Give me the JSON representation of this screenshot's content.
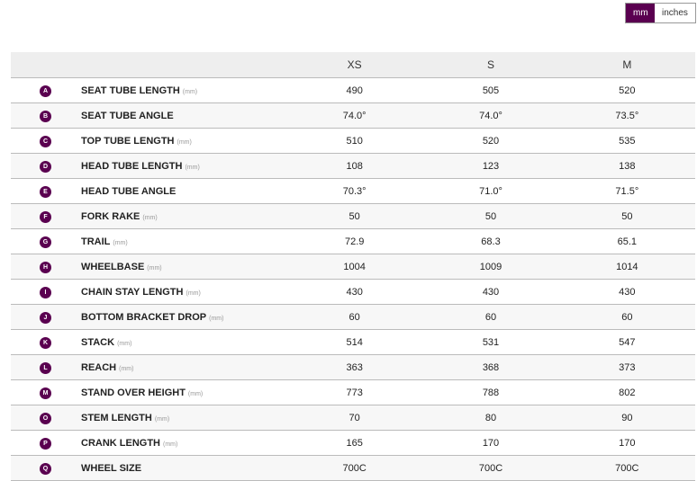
{
  "units": {
    "mm": "mm",
    "inches": "inches",
    "active": "mm"
  },
  "accent": "#5a0050",
  "sizes": [
    "XS",
    "S",
    "M"
  ],
  "rows": [
    {
      "key": "A",
      "label": "SEAT TUBE LENGTH",
      "unit": "(mm)",
      "values": [
        "490",
        "505",
        "520"
      ]
    },
    {
      "key": "B",
      "label": "SEAT TUBE ANGLE",
      "unit": "",
      "values": [
        "74.0°",
        "74.0°",
        "73.5°"
      ]
    },
    {
      "key": "C",
      "label": "TOP TUBE LENGTH",
      "unit": "(mm)",
      "values": [
        "510",
        "520",
        "535"
      ]
    },
    {
      "key": "D",
      "label": "HEAD TUBE LENGTH",
      "unit": "(mm)",
      "values": [
        "108",
        "123",
        "138"
      ]
    },
    {
      "key": "E",
      "label": "HEAD TUBE ANGLE",
      "unit": "",
      "values": [
        "70.3°",
        "71.0°",
        "71.5°"
      ]
    },
    {
      "key": "F",
      "label": "FORK RAKE",
      "unit": "(mm)",
      "values": [
        "50",
        "50",
        "50"
      ]
    },
    {
      "key": "G",
      "label": "TRAIL",
      "unit": "(mm)",
      "values": [
        "72.9",
        "68.3",
        "65.1"
      ]
    },
    {
      "key": "H",
      "label": "WHEELBASE",
      "unit": "(mm)",
      "values": [
        "1004",
        "1009",
        "1014"
      ]
    },
    {
      "key": "I",
      "label": "CHAIN STAY LENGTH",
      "unit": "(mm)",
      "values": [
        "430",
        "430",
        "430"
      ]
    },
    {
      "key": "J",
      "label": "BOTTOM BRACKET DROP",
      "unit": "(mm)",
      "values": [
        "60",
        "60",
        "60"
      ]
    },
    {
      "key": "K",
      "label": "STACK",
      "unit": "(mm)",
      "values": [
        "514",
        "531",
        "547"
      ]
    },
    {
      "key": "L",
      "label": "REACH",
      "unit": "(mm)",
      "values": [
        "363",
        "368",
        "373"
      ]
    },
    {
      "key": "M",
      "label": "STAND OVER HEIGHT",
      "unit": "(mm)",
      "values": [
        "773",
        "788",
        "802"
      ]
    },
    {
      "key": "O",
      "label": "STEM LENGTH",
      "unit": "(mm)",
      "values": [
        "70",
        "80",
        "90"
      ]
    },
    {
      "key": "P",
      "label": "CRANK LENGTH",
      "unit": "(mm)",
      "values": [
        "165",
        "170",
        "170"
      ]
    },
    {
      "key": "Q",
      "label": "WHEEL SIZE",
      "unit": "",
      "values": [
        "700C",
        "700C",
        "700C"
      ]
    }
  ]
}
